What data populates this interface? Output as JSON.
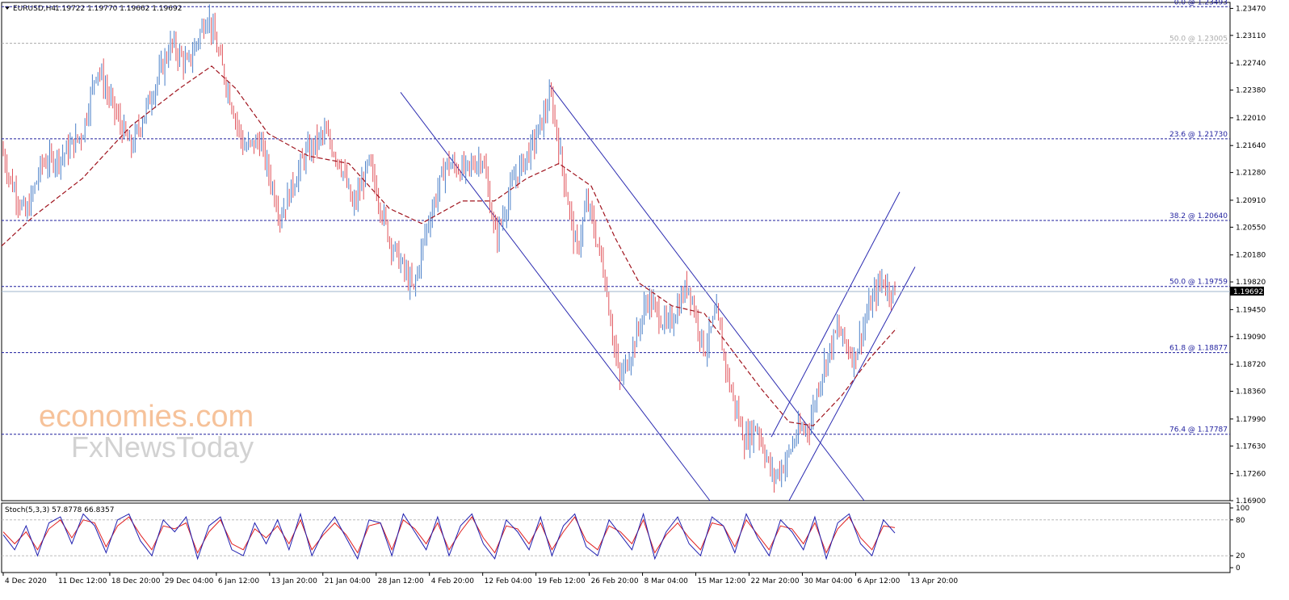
{
  "header": {
    "symbol": "EURUSD,H4",
    "ohlc": "1.19722 1.19770 1.19662 1.19692"
  },
  "watermark": {
    "brand": "economies.com",
    "sub": "FxNewsToday"
  },
  "colors": {
    "bull": "#4a7fc8",
    "bear": "#e0525a",
    "ma": "#a0141e",
    "fib": "#1f1f9e",
    "fib_50": "#aaaaaa",
    "channel": "#2a2ab0",
    "stoch_main": "#1f1fb0",
    "stoch_signal": "#e02020"
  },
  "chart_data": {
    "type": "line",
    "title": "EURUSD,H4",
    "ylim": [
      1.169,
      1.2355
    ],
    "price_axis": {
      "ticks": [
        "1.23470",
        "1.23110",
        "1.22740",
        "1.22380",
        "1.22010",
        "1.21640",
        "1.21280",
        "1.20910",
        "1.20550",
        "1.20180",
        "1.19820",
        "1.19450",
        "1.19090",
        "1.18720",
        "1.18360",
        "1.17990",
        "1.17630",
        "1.17260",
        "1.16900"
      ],
      "current_price": "1.19692"
    },
    "time_axis": [
      "4 Dec 2020",
      "11 Dec 12:00",
      "18 Dec 20:00",
      "29 Dec 04:00",
      "6 Jan 12:00",
      "13 Jan 20:00",
      "21 Jan 04:00",
      "28 Jan 12:00",
      "4 Feb 20:00",
      "12 Feb 04:00",
      "19 Feb 12:00",
      "26 Feb 20:00",
      "8 Mar 04:00",
      "15 Mar 12:00",
      "22 Mar 20:00",
      "30 Mar 04:00",
      "6 Apr 12:00",
      "13 Apr 20:00"
    ],
    "fib_levels": [
      {
        "label": "0.0 @ 1.23493",
        "value": 1.23493
      },
      {
        "label": "50.0 @ 1.23005",
        "value": 1.23005
      },
      {
        "label": "23.6 @ 1.21730",
        "value": 1.2173
      },
      {
        "label": "38.2 @ 1.20640",
        "value": 1.2064
      },
      {
        "label": "50.0 @ 1.19759",
        "value": 1.19759
      },
      {
        "label": "61.8 @ 1.18877",
        "value": 1.18877
      },
      {
        "label": "76.4 @ 1.17787",
        "value": 1.17787
      }
    ],
    "price_path": [
      {
        "t": 0,
        "v": 1.216
      },
      {
        "t": 10,
        "v": 1.212
      },
      {
        "t": 30,
        "v": 1.207
      },
      {
        "t": 50,
        "v": 1.214
      },
      {
        "t": 75,
        "v": 1.215
      },
      {
        "t": 100,
        "v": 1.218
      },
      {
        "t": 118,
        "v": 1.227
      },
      {
        "t": 140,
        "v": 1.221
      },
      {
        "t": 160,
        "v": 1.216
      },
      {
        "t": 185,
        "v": 1.223
      },
      {
        "t": 210,
        "v": 1.23
      },
      {
        "t": 230,
        "v": 1.227
      },
      {
        "t": 255,
        "v": 1.234
      },
      {
        "t": 275,
        "v": 1.226
      },
      {
        "t": 300,
        "v": 1.216
      },
      {
        "t": 320,
        "v": 1.217
      },
      {
        "t": 345,
        "v": 1.207
      },
      {
        "t": 375,
        "v": 1.215
      },
      {
        "t": 400,
        "v": 1.218
      },
      {
        "t": 420,
        "v": 1.214
      },
      {
        "t": 435,
        "v": 1.208
      },
      {
        "t": 455,
        "v": 1.214
      },
      {
        "t": 480,
        "v": 1.204
      },
      {
        "t": 510,
        "v": 1.197
      },
      {
        "t": 525,
        "v": 1.205
      },
      {
        "t": 550,
        "v": 1.214
      },
      {
        "t": 575,
        "v": 1.213
      },
      {
        "t": 595,
        "v": 1.215
      },
      {
        "t": 612,
        "v": 1.204
      },
      {
        "t": 635,
        "v": 1.212
      },
      {
        "t": 660,
        "v": 1.217
      },
      {
        "t": 680,
        "v": 1.223
      },
      {
        "t": 695,
        "v": 1.213
      },
      {
        "t": 712,
        "v": 1.202
      },
      {
        "t": 725,
        "v": 1.209
      },
      {
        "t": 745,
        "v": 1.2
      },
      {
        "t": 765,
        "v": 1.185
      },
      {
        "t": 780,
        "v": 1.189
      },
      {
        "t": 800,
        "v": 1.196
      },
      {
        "t": 825,
        "v": 1.192
      },
      {
        "t": 850,
        "v": 1.198
      },
      {
        "t": 870,
        "v": 1.189
      },
      {
        "t": 885,
        "v": 1.194
      },
      {
        "t": 900,
        "v": 1.185
      },
      {
        "t": 920,
        "v": 1.177
      },
      {
        "t": 935,
        "v": 1.179
      },
      {
        "t": 955,
        "v": 1.172
      },
      {
        "t": 970,
        "v": 1.174
      },
      {
        "t": 985,
        "v": 1.178
      },
      {
        "t": 1000,
        "v": 1.179
      },
      {
        "t": 1015,
        "v": 1.186
      },
      {
        "t": 1035,
        "v": 1.192
      },
      {
        "t": 1055,
        "v": 1.188
      },
      {
        "t": 1075,
        "v": 1.195
      },
      {
        "t": 1090,
        "v": 1.1985
      },
      {
        "t": 1100,
        "v": 1.197
      },
      {
        "t": 1108,
        "v": 1.1969
      }
    ],
    "moving_average": [
      {
        "t": 0,
        "v": 1.203
      },
      {
        "t": 40,
        "v": 1.207
      },
      {
        "t": 100,
        "v": 1.212
      },
      {
        "t": 160,
        "v": 1.219
      },
      {
        "t": 220,
        "v": 1.224
      },
      {
        "t": 260,
        "v": 1.227
      },
      {
        "t": 290,
        "v": 1.224
      },
      {
        "t": 330,
        "v": 1.218
      },
      {
        "t": 380,
        "v": 1.215
      },
      {
        "t": 430,
        "v": 1.214
      },
      {
        "t": 480,
        "v": 1.208
      },
      {
        "t": 520,
        "v": 1.206
      },
      {
        "t": 570,
        "v": 1.209
      },
      {
        "t": 610,
        "v": 1.209
      },
      {
        "t": 650,
        "v": 1.212
      },
      {
        "t": 690,
        "v": 1.214
      },
      {
        "t": 730,
        "v": 1.211
      },
      {
        "t": 760,
        "v": 1.204
      },
      {
        "t": 790,
        "v": 1.198
      },
      {
        "t": 830,
        "v": 1.195
      },
      {
        "t": 870,
        "v": 1.194
      },
      {
        "t": 905,
        "v": 1.189
      },
      {
        "t": 940,
        "v": 1.184
      },
      {
        "t": 975,
        "v": 1.1795
      },
      {
        "t": 1005,
        "v": 1.179
      },
      {
        "t": 1040,
        "v": 1.183
      },
      {
        "t": 1075,
        "v": 1.188
      },
      {
        "t": 1108,
        "v": 1.192
      }
    ],
    "channel_lines": [
      {
        "from": {
          "t": 494,
          "v": 1.2235
        },
        "to": {
          "t": 877,
          "v": 1.169
        }
      },
      {
        "from": {
          "t": 679,
          "v": 1.2244
        },
        "to": {
          "t": 1068,
          "v": 1.169
        }
      },
      {
        "from": {
          "t": 953,
          "v": 1.1775
        },
        "to": {
          "t": 1112,
          "v": 1.2102
        }
      },
      {
        "from": {
          "t": 975,
          "v": 1.169
        },
        "to": {
          "t": 1131,
          "v": 1.2002
        }
      }
    ],
    "stochastic": {
      "label": "Stoch(5,3,3) 57.8778 66.8357",
      "ylim": [
        0,
        100
      ],
      "levels": [
        "100",
        "80",
        "20",
        "0"
      ],
      "main": [
        55,
        30,
        70,
        20,
        75,
        85,
        40,
        90,
        70,
        25,
        80,
        90,
        45,
        20,
        80,
        60,
        85,
        15,
        70,
        85,
        30,
        20,
        75,
        40,
        80,
        30,
        90,
        20,
        60,
        85,
        50,
        15,
        80,
        75,
        20,
        90,
        60,
        30,
        85,
        20,
        70,
        90,
        40,
        15,
        80,
        60,
        30,
        85,
        20,
        70,
        90,
        35,
        20,
        80,
        55,
        30,
        90,
        15,
        60,
        85,
        40,
        20,
        85,
        70,
        25,
        90,
        50,
        20,
        80,
        60,
        30,
        85,
        15,
        75,
        90,
        40,
        20,
        80,
        58
      ],
      "signal": [
        60,
        40,
        60,
        30,
        65,
        80,
        50,
        80,
        75,
        35,
        70,
        85,
        55,
        30,
        70,
        65,
        75,
        25,
        60,
        80,
        40,
        30,
        65,
        50,
        70,
        40,
        80,
        30,
        55,
        75,
        55,
        25,
        70,
        75,
        30,
        80,
        65,
        40,
        75,
        30,
        60,
        85,
        50,
        25,
        70,
        65,
        40,
        75,
        30,
        60,
        85,
        45,
        30,
        70,
        60,
        40,
        80,
        25,
        55,
        75,
        50,
        30,
        75,
        70,
        35,
        80,
        55,
        30,
        70,
        65,
        40,
        75,
        25,
        65,
        85,
        50,
        30,
        70,
        67
      ]
    }
  }
}
